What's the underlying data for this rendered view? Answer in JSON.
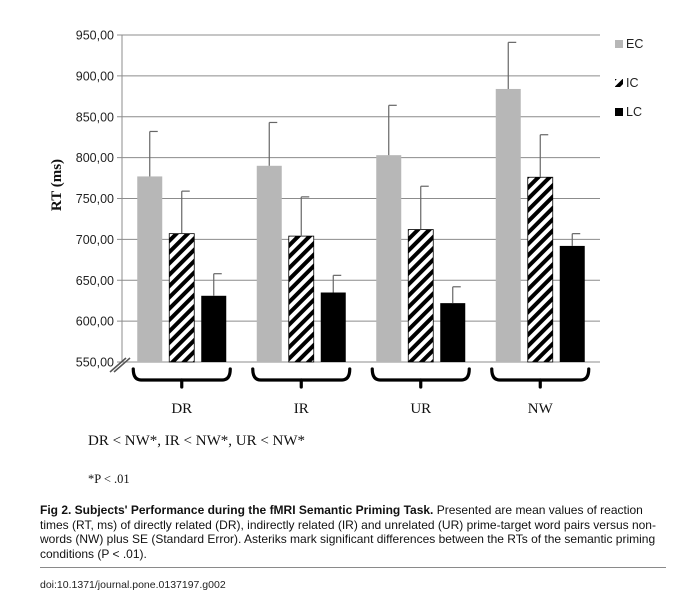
{
  "chart_data": {
    "type": "bar",
    "ylabel": "RT (ms)",
    "ylim": [
      550,
      950
    ],
    "yticks": [
      "550,00",
      "600,00",
      "650,00",
      "700,00",
      "750,00",
      "800,00",
      "850,00",
      "900,00",
      "950,00"
    ],
    "categories": [
      "DR",
      "IR",
      "UR",
      "NW"
    ],
    "series": [
      {
        "name": "EC",
        "color": "#b7b7b7",
        "pattern": "solid",
        "values": [
          777,
          790,
          803,
          884
        ],
        "errors": [
          55,
          53,
          61,
          57
        ]
      },
      {
        "name": "IC",
        "color": "#000000",
        "pattern": "diagonal-stripes",
        "values": [
          707,
          704,
          712,
          776
        ],
        "errors": [
          52,
          48,
          53,
          52
        ]
      },
      {
        "name": "LC",
        "color": "#000000",
        "pattern": "solid",
        "values": [
          631,
          635,
          622,
          692
        ],
        "errors": [
          27,
          21,
          20,
          15
        ]
      }
    ],
    "grid": true,
    "legend_position": "right"
  },
  "notes": {
    "comparisons": "DR < NW*, IR < NW*, UR < NW*",
    "significance": "*P < .01"
  },
  "caption": {
    "title": "Fig 2. Subjects' Performance during the fMRI Semantic Priming Task.",
    "body": " Presented are mean values of reaction times (RT, ms) of directly related (DR), indirectly related (IR) and unrelated (UR) prime-target word pairs versus non-words (NW) plus SE (Standard Error). Asteriks mark significant differences between the RTs of the semantic priming conditions (P < .01)."
  },
  "doi": "doi:10.1371/journal.pone.0137197.g002"
}
